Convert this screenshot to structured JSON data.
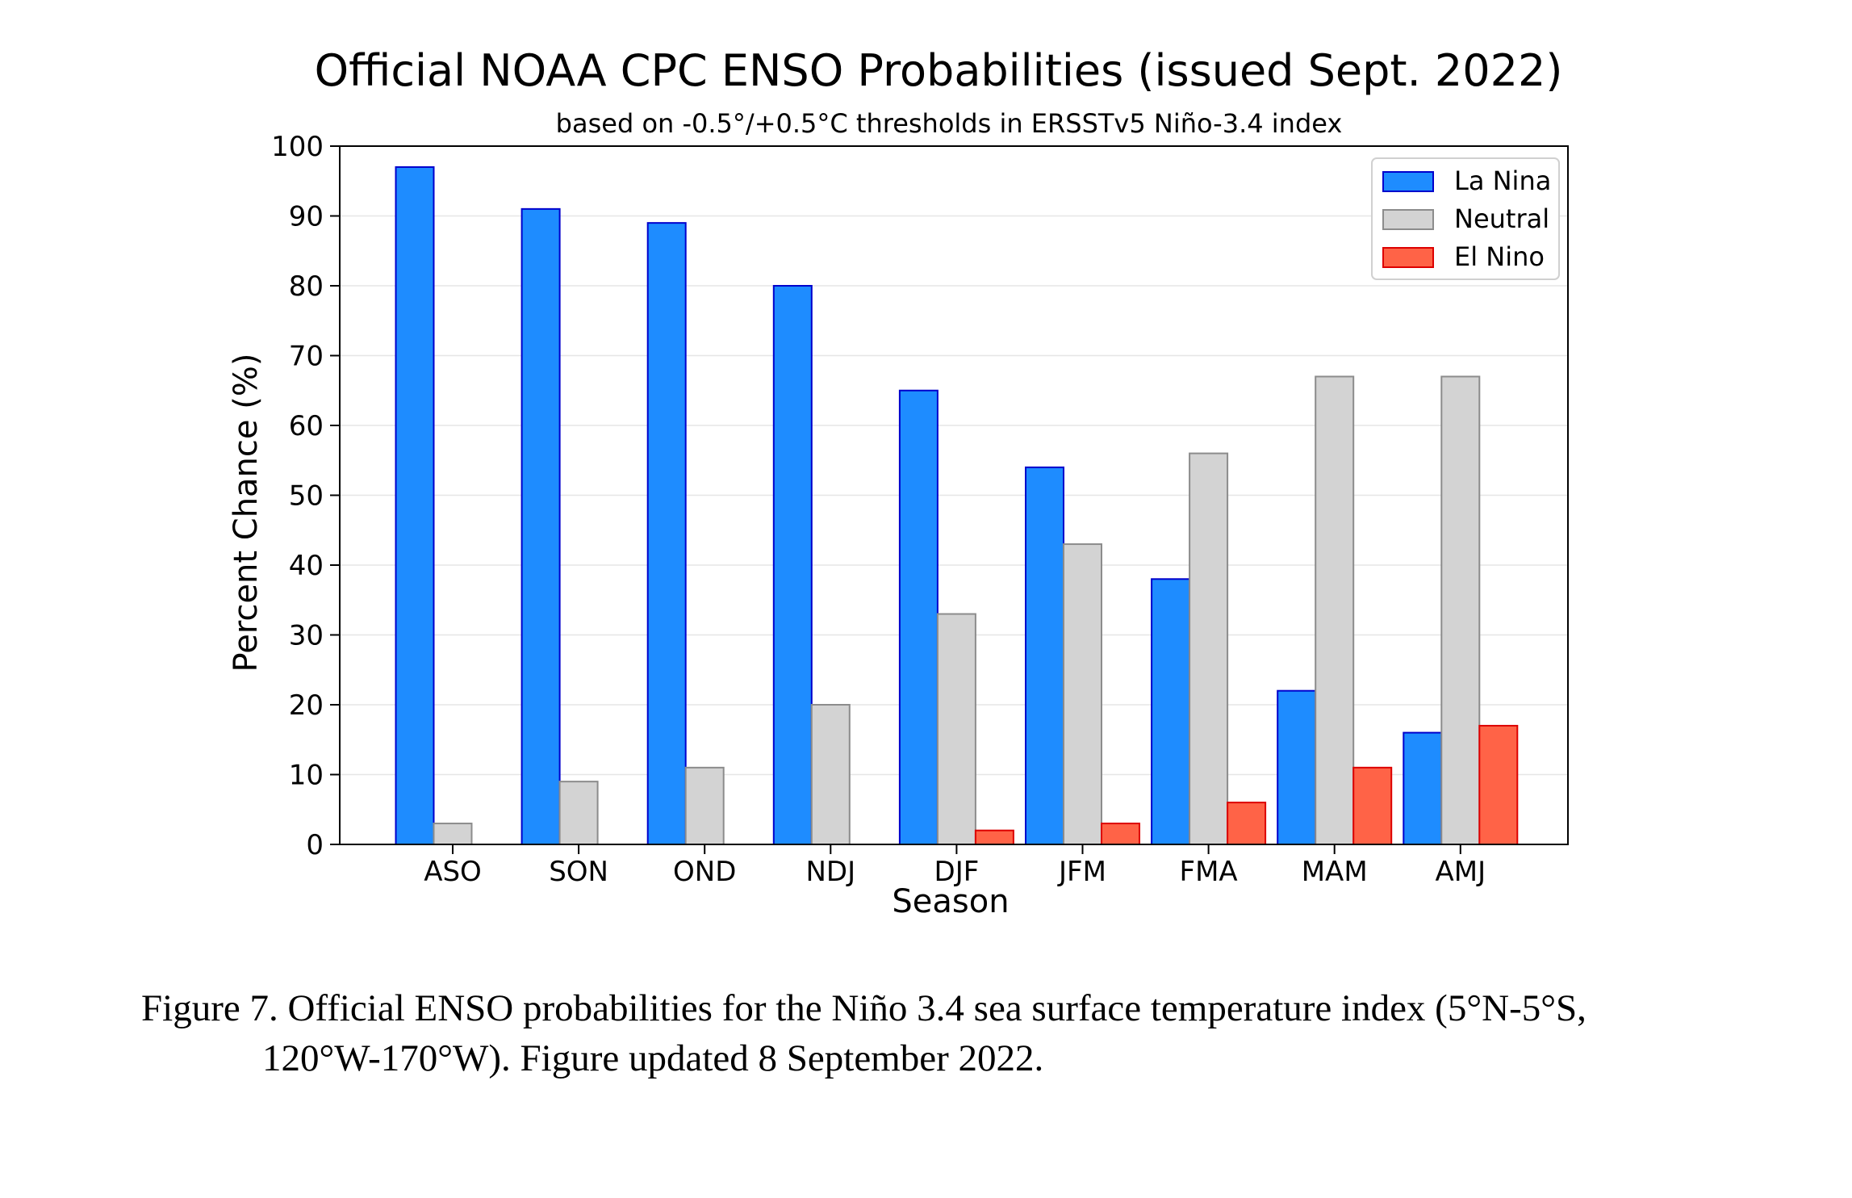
{
  "chart_data": {
    "type": "bar",
    "title": "Official NOAA CPC ENSO Probabilities (issued Sept. 2022)",
    "subtitle": "based on -0.5°/+0.5°C thresholds in ERSSTv5 Niño-3.4 index",
    "xlabel": "Season",
    "ylabel": "Percent Chance (%)",
    "ylim": [
      0,
      100
    ],
    "yticks": [
      0,
      10,
      20,
      30,
      40,
      50,
      60,
      70,
      80,
      90,
      100
    ],
    "grid": true,
    "legend_position": "top-right",
    "categories": [
      "ASO",
      "SON",
      "OND",
      "NDJ",
      "DJF",
      "JFM",
      "FMA",
      "MAM",
      "AMJ"
    ],
    "series": [
      {
        "name": "La Nina",
        "color": "#1e8cff",
        "edge": "#0000cc",
        "values": [
          97,
          91,
          89,
          80,
          65,
          54,
          38,
          22,
          16
        ]
      },
      {
        "name": "Neutral",
        "color": "#d3d3d3",
        "edge": "#8c8c8c",
        "values": [
          3,
          9,
          11,
          20,
          33,
          43,
          56,
          67,
          67
        ]
      },
      {
        "name": "El Nino",
        "color": "#ff6347",
        "edge": "#dd0000",
        "values": [
          0,
          0,
          0,
          0,
          2,
          3,
          6,
          11,
          17
        ]
      }
    ]
  },
  "caption": {
    "line1": "Figure 7. Official ENSO probabilities for the Niño 3.4 sea surface temperature index (5°N-5°S,",
    "line2": "120°W-170°W). Figure updated 8 September 2022."
  }
}
